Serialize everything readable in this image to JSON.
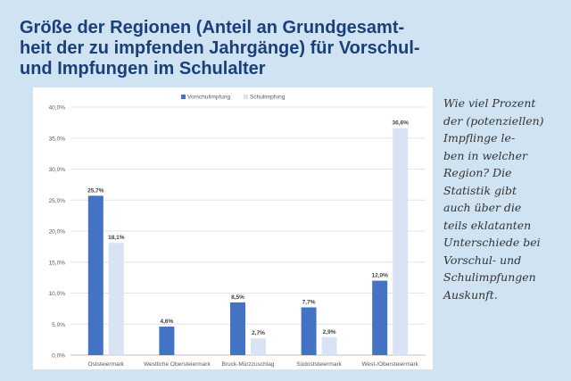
{
  "header": {
    "title": "Größe der Regionen (Anteil an Grundgesamt-\nheit der zu impfenden Jahrgänge) für Vorschul-\nund Impfungen im Schulalter"
  },
  "sidebar": {
    "text": "Wie viel Prozent\nder (potenziellen)\nImpflinge le-\nben in welcher\nRegion? Die\nStatistik gibt\nauch über die\nteils eklatanten\nUnterschiede bei\nVorschul- und\nSchulimpfungen\nAuskunft."
  },
  "chart_data": {
    "type": "bar",
    "categories": [
      "Oststeiermark",
      "Westliche Obersteiermark",
      "Bruck-Mürzzuschlag",
      "Südoststeiermark",
      "West-/Obersteiermark"
    ],
    "series": [
      {
        "name": "Vorschulimpfung",
        "values": [
          25.7,
          4.6,
          8.5,
          7.7,
          12.0
        ],
        "labels": [
          "25,7%",
          "4,6%",
          "8,5%",
          "7,7%",
          "12,0%"
        ],
        "color": "#4472c4"
      },
      {
        "name": "Schulimpfung",
        "values": [
          18.1,
          null,
          2.7,
          2.9,
          36.6
        ],
        "labels": [
          "18,1%",
          "",
          "2,7%",
          "2,9%",
          "36,6%"
        ],
        "color": "#dae3f3"
      }
    ],
    "ylim": [
      0,
      40
    ],
    "yticks": [
      "0,0%",
      "5,0%",
      "10,0%",
      "15,0%",
      "20,0%",
      "25,0%",
      "30,0%",
      "35,0%",
      "40,0%"
    ],
    "grid": true,
    "legend_position": "top"
  }
}
